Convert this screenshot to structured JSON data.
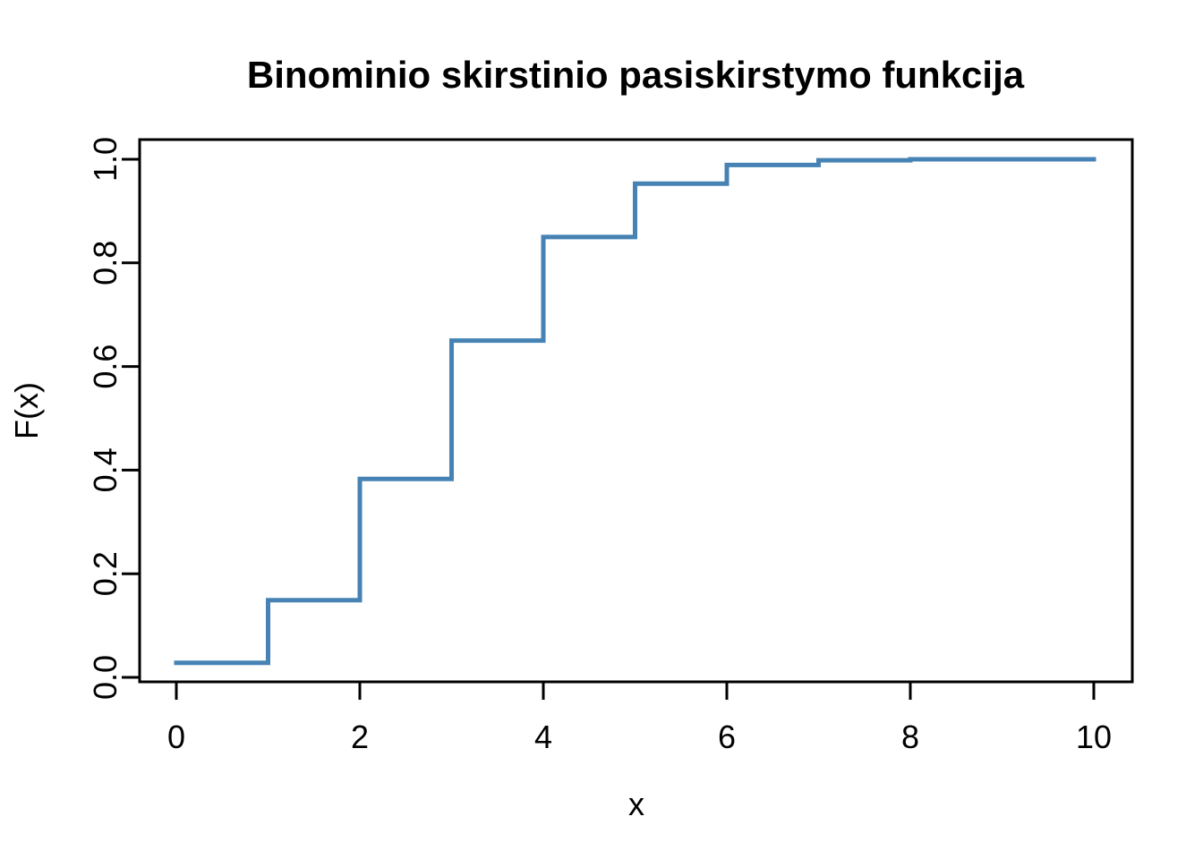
{
  "chart_data": {
    "type": "line",
    "subtype": "step",
    "title": "Binominio skirstinio pasiskirstymo funkcija",
    "xlabel": "x",
    "ylabel": "F(x)",
    "x": [
      0,
      1,
      2,
      3,
      4,
      5,
      6,
      7,
      8,
      9,
      10
    ],
    "y": [
      0.028,
      0.149,
      0.383,
      0.65,
      0.85,
      0.953,
      0.989,
      0.998,
      1.0,
      1.0,
      1.0
    ],
    "xlim": [
      0,
      10
    ],
    "ylim": [
      0,
      1
    ],
    "xticks": [
      {
        "value": 0,
        "label": "0"
      },
      {
        "value": 2,
        "label": "2"
      },
      {
        "value": 4,
        "label": "4"
      },
      {
        "value": 6,
        "label": "6"
      },
      {
        "value": 8,
        "label": "8"
      },
      {
        "value": 10,
        "label": "10"
      }
    ],
    "yticks": [
      {
        "value": 0.0,
        "label": "0.0"
      },
      {
        "value": 0.2,
        "label": "0.2"
      },
      {
        "value": 0.4,
        "label": "0.4"
      },
      {
        "value": 0.6,
        "label": "0.6"
      },
      {
        "value": 0.8,
        "label": "0.8"
      },
      {
        "value": 1.0,
        "label": "1.0"
      }
    ],
    "line_color": "#4682B4",
    "axis_color": "#000000",
    "background_color": "#FFFFFF",
    "grid": "off",
    "legend": "none"
  }
}
